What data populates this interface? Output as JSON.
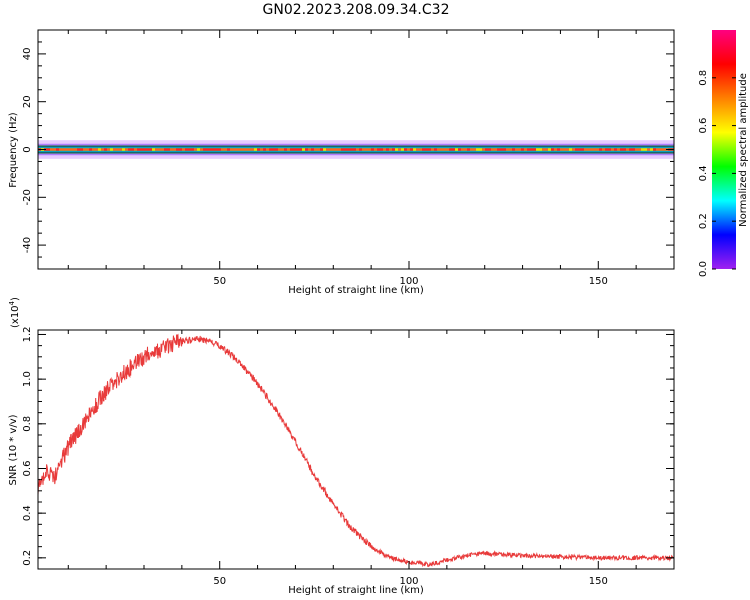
{
  "title": "GN02.2023.208.09.34.C32",
  "colors": {
    "snr_line": "#e83a3a",
    "frame": "#000000",
    "center_line": "#1a7a3a"
  },
  "chart_data": [
    {
      "type": "heatmap",
      "xlabel": "Height of straight line (km)",
      "ylabel": "Frequency (Hz)",
      "xlim": [
        2,
        170
      ],
      "ylim": [
        -50,
        50
      ],
      "x_ticks": [
        50,
        100,
        150
      ],
      "y_ticks": [
        -40,
        -20,
        0,
        20,
        40
      ],
      "band_center_hz": 0,
      "band_halfwidth_hz": 1.5,
      "colorbar": {
        "label": "Normalized spectral amplitude",
        "range": [
          0,
          1
        ],
        "ticks": [
          "0.0",
          "0.2",
          "0.4",
          "0.6",
          "0.8"
        ],
        "colormap": [
          "#a020f0",
          "#0000ff",
          "#00ffff",
          "#00ff00",
          "#ffff00",
          "#ff8000",
          "#ff0000",
          "#ff0080"
        ]
      }
    },
    {
      "type": "line",
      "xlabel": "Height of straight line (km)",
      "ylabel": "SNR (10 * v/v)",
      "y_multiplier": "(x10",
      "y_multiplier_exp": "4",
      "xlim": [
        2,
        170
      ],
      "ylim": [
        0.15,
        1.22
      ],
      "x_ticks": [
        50,
        100,
        150
      ],
      "y_ticks": [
        "0.2",
        "0.4",
        "0.6",
        "0.8",
        "1.0",
        "1.2"
      ],
      "series": [
        {
          "x": [
            2,
            4,
            6,
            10,
            15,
            20,
            25,
            30,
            35,
            40,
            45,
            50,
            55,
            60,
            65,
            70,
            75,
            80,
            85,
            90,
            95,
            100,
            105,
            110,
            115,
            120,
            125,
            130,
            140,
            150,
            160,
            170
          ],
          "y": [
            0.5,
            0.6,
            0.55,
            0.7,
            0.82,
            0.95,
            1.03,
            1.1,
            1.14,
            1.17,
            1.18,
            1.15,
            1.08,
            0.98,
            0.86,
            0.72,
            0.57,
            0.44,
            0.33,
            0.25,
            0.2,
            0.18,
            0.17,
            0.19,
            0.21,
            0.22,
            0.215,
            0.21,
            0.205,
            0.2,
            0.2,
            0.2
          ]
        }
      ]
    }
  ]
}
